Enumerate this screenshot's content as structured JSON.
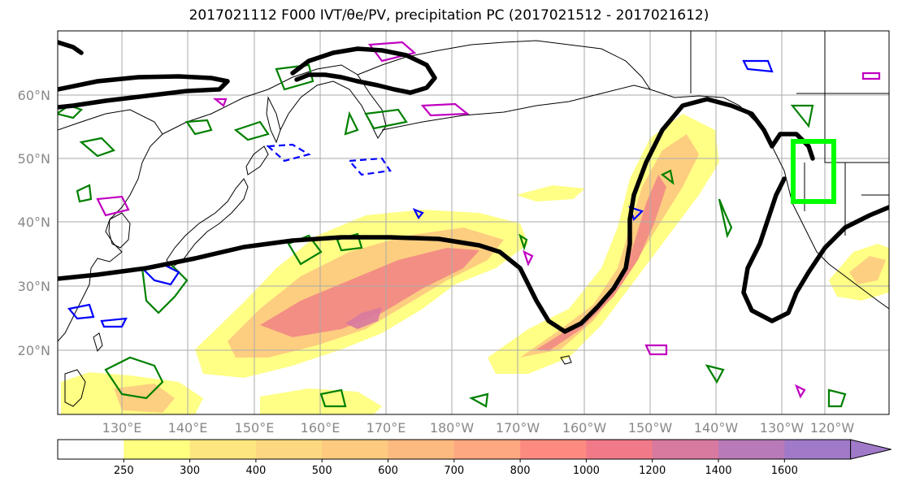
{
  "title": "2017021112 F000 IVT/θe/PV, precipitation PC (2017021512 - 2017021612)",
  "map": {
    "lat_labels": [
      "60°N",
      "50°N",
      "40°N",
      "30°N",
      "20°N"
    ],
    "lon_labels": [
      "130°E",
      "140°E",
      "150°E",
      "160°E",
      "170°E",
      "180°W",
      "170°W",
      "160°W",
      "150°W",
      "140°W",
      "130°W",
      "120°W"
    ]
  },
  "colorbar": {
    "levels": [
      "250",
      "300",
      "400",
      "500",
      "600",
      "700",
      "800",
      "1000",
      "1200",
      "1400",
      "1600"
    ],
    "colors": [
      "#ffffff",
      "#ffff80",
      "#fde680",
      "#fdd880",
      "#fdca80",
      "#fdba80",
      "#fda880",
      "#fd8a80",
      "#f07a88",
      "#d87aa0",
      "#b87ab8",
      "#a07ac8"
    ]
  },
  "colors": {
    "ivt_fill_low": "#ffff80",
    "ivt_fill_mid": "#fdca80",
    "ivt_fill_high": "#f07a88",
    "theta_e_contour": "#000000",
    "pv_contour_green": "#008000",
    "pv_contour_blue": "#0000ff",
    "pv_contour_magenta": "#c000c0",
    "region_box": "#00ff00",
    "coastline": "#000000",
    "grid": "#aaaaaa"
  }
}
